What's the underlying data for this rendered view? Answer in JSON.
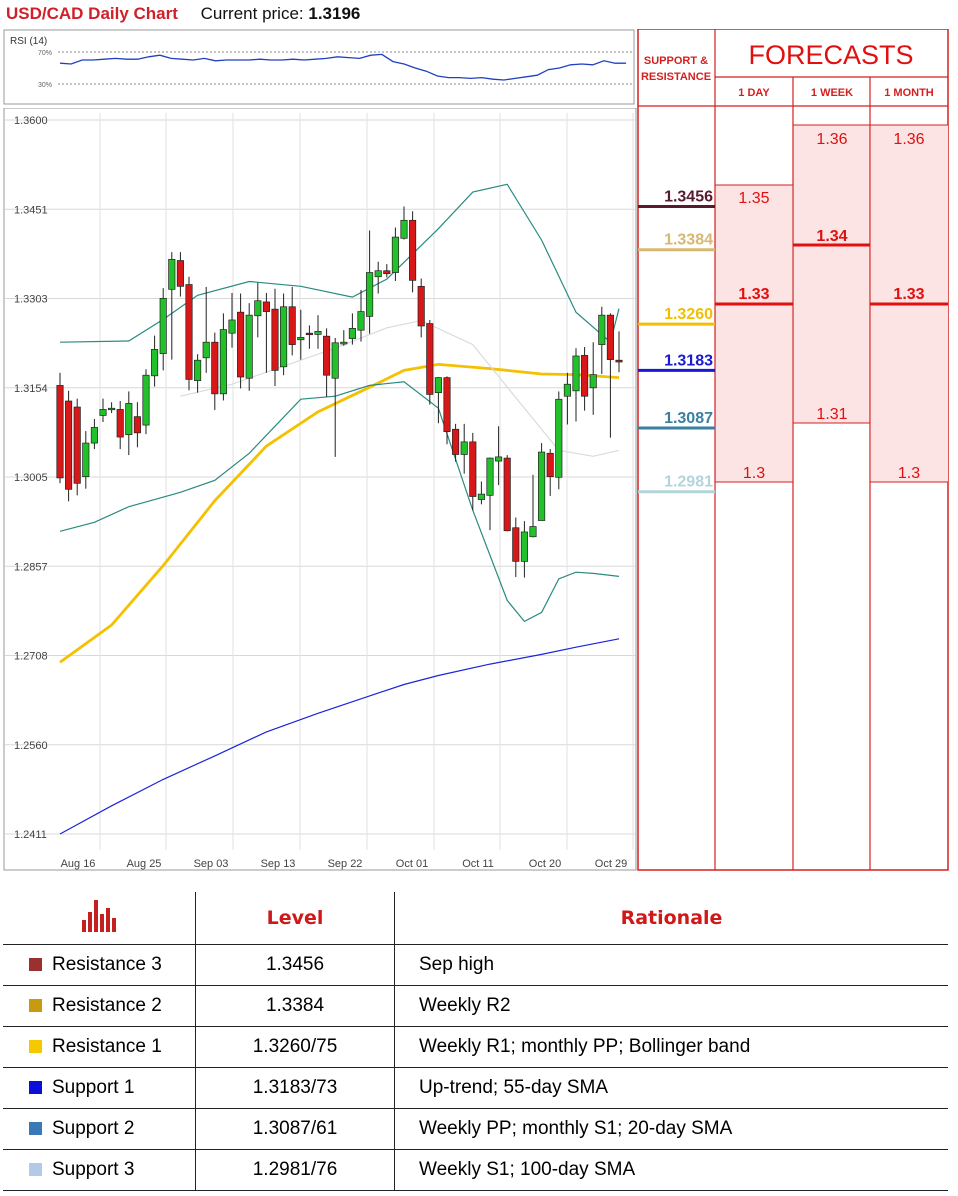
{
  "header": {
    "title": "USD/CAD Daily Chart",
    "price_label": "Current price:",
    "price_value": "1.3196"
  },
  "rsi": {
    "label": "RSI (14)",
    "upper": "70%",
    "lower": "30%",
    "values": [
      56,
      55,
      60,
      60,
      61,
      62,
      61,
      61,
      64,
      66,
      62,
      61,
      60,
      62,
      59,
      60,
      60,
      60,
      61,
      60,
      60,
      61,
      60,
      61,
      62,
      64,
      63,
      62,
      66,
      67,
      58,
      55,
      50,
      46,
      40,
      38,
      38,
      37,
      38,
      36,
      35,
      37,
      39,
      41,
      48,
      50,
      54,
      55,
      54,
      59,
      56,
      56
    ]
  },
  "chart_data": {
    "type": "candlestick",
    "title": "USD/CAD Daily Chart",
    "y_ticks": [
      "1.3600",
      "1.3451",
      "1.3303",
      "1.3154",
      "1.3005",
      "1.2857",
      "1.2708",
      "1.2560",
      "1.2411"
    ],
    "x_ticks": [
      "Aug 16",
      "Aug 25",
      "Sep 03",
      "Sep 13",
      "Sep 22",
      "Oct 01",
      "Oct 11",
      "Oct 20",
      "Oct 29"
    ],
    "ylim": [
      1.2411,
      1.36
    ],
    "grid": true,
    "candles": [
      [
        1.3158,
        1.3004,
        1.3179,
        1.2995
      ],
      [
        1.3132,
        1.2985,
        1.3149,
        1.2965
      ],
      [
        1.3122,
        1.2995,
        1.3136,
        1.2975
      ],
      [
        1.3006,
        1.3062,
        1.3082,
        1.2986
      ],
      [
        1.3062,
        1.3088,
        1.3102,
        1.3052
      ],
      [
        1.3108,
        1.3118,
        1.3136,
        1.3097
      ],
      [
        1.3118,
        1.312,
        1.313,
        1.3112
      ],
      [
        1.3118,
        1.3072,
        1.3132,
        1.3052
      ],
      [
        1.3076,
        1.3128,
        1.3148,
        1.3042
      ],
      [
        1.3106,
        1.3079,
        1.313,
        1.3055
      ],
      [
        1.3092,
        1.3175,
        1.3185,
        1.3077
      ],
      [
        1.3174,
        1.3218,
        1.3241,
        1.3156
      ],
      [
        1.3211,
        1.3303,
        1.332,
        1.3183
      ],
      [
        1.3318,
        1.3368,
        1.338,
        1.3201
      ],
      [
        1.3366,
        1.3323,
        1.338,
        1.3306
      ],
      [
        1.3326,
        1.3168,
        1.3339,
        1.315
      ],
      [
        1.3166,
        1.32,
        1.321,
        1.3146
      ],
      [
        1.3204,
        1.323,
        1.3322,
        1.3179
      ],
      [
        1.323,
        1.3144,
        1.3246,
        1.3117
      ],
      [
        1.3144,
        1.3251,
        1.3278,
        1.3133
      ],
      [
        1.3245,
        1.3267,
        1.3312,
        1.3221
      ],
      [
        1.328,
        1.3172,
        1.3311,
        1.3153
      ],
      [
        1.317,
        1.3275,
        1.3295,
        1.3149
      ],
      [
        1.3274,
        1.3299,
        1.3329,
        1.3238
      ],
      [
        1.3297,
        1.3281,
        1.3312,
        1.3179
      ],
      [
        1.3285,
        1.3183,
        1.3319,
        1.3157
      ],
      [
        1.3189,
        1.3289,
        1.3311,
        1.3175
      ],
      [
        1.3289,
        1.3226,
        1.3322,
        1.3208
      ],
      [
        1.3234,
        1.3238,
        1.3284,
        1.3201
      ],
      [
        1.3245,
        1.3244,
        1.3258,
        1.3219
      ],
      [
        1.3243,
        1.3248,
        1.3275,
        1.3219
      ],
      [
        1.324,
        1.3175,
        1.3253,
        1.3139
      ],
      [
        1.317,
        1.3229,
        1.3237,
        1.3039
      ],
      [
        1.3227,
        1.323,
        1.325,
        1.3224
      ],
      [
        1.3236,
        1.3253,
        1.3278,
        1.3226
      ],
      [
        1.325,
        1.3281,
        1.3317,
        1.3231
      ],
      [
        1.3273,
        1.3346,
        1.3416,
        1.3244
      ],
      [
        1.3339,
        1.3349,
        1.3364,
        1.3311
      ],
      [
        1.3349,
        1.3344,
        1.336,
        1.3338
      ],
      [
        1.3346,
        1.3405,
        1.3421,
        1.3332
      ],
      [
        1.3403,
        1.3433,
        1.3456,
        1.3401
      ],
      [
        1.3433,
        1.3333,
        1.3448,
        1.3313
      ],
      [
        1.3323,
        1.3257,
        1.3336,
        1.3238
      ],
      [
        1.3261,
        1.3143,
        1.3267,
        1.3126
      ],
      [
        1.3146,
        1.3171,
        1.3172,
        1.3095
      ],
      [
        1.3171,
        1.3081,
        1.3173,
        1.306
      ],
      [
        1.3085,
        1.3043,
        1.3094,
        1.3031
      ],
      [
        1.3043,
        1.3064,
        1.3094,
        1.3011
      ],
      [
        1.3064,
        1.2973,
        1.3079,
        1.295
      ],
      [
        1.2968,
        1.2977,
        1.2998,
        1.296
      ],
      [
        1.2975,
        1.3037,
        1.3038,
        1.2917
      ],
      [
        1.3032,
        1.3039,
        1.309,
        1.2992
      ],
      [
        1.3037,
        1.2916,
        1.3042,
        1.2915
      ],
      [
        1.2921,
        1.2865,
        1.2938,
        1.2839
      ],
      [
        1.2865,
        1.2914,
        1.2932,
        1.2838
      ],
      [
        1.2906,
        1.2923,
        1.3009,
        1.2905
      ],
      [
        1.2933,
        1.3047,
        1.3062,
        1.294
      ],
      [
        1.3045,
        1.3006,
        1.3052,
        1.2974
      ],
      [
        1.3005,
        1.3135,
        1.3148,
        1.2985
      ],
      [
        1.314,
        1.316,
        1.3179,
        1.3093
      ],
      [
        1.3149,
        1.3207,
        1.322,
        1.3098
      ],
      [
        1.3208,
        1.314,
        1.3222,
        1.3116
      ],
      [
        1.3154,
        1.3176,
        1.323,
        1.3109
      ],
      [
        1.3226,
        1.3275,
        1.3289,
        1.3177
      ],
      [
        1.3275,
        1.3201,
        1.3278,
        1.3071
      ],
      [
        1.32,
        1.3197,
        1.3248,
        1.318
      ]
    ],
    "indicator_lines": [
      {
        "name": "55-day SMA",
        "color": "#f5c000",
        "values": [
          [
            0,
            1.2697
          ],
          [
            6,
            1.2759
          ],
          [
            12,
            1.2858
          ],
          [
            18,
            1.2966
          ],
          [
            24,
            1.3057
          ],
          [
            30,
            1.3114
          ],
          [
            36,
            1.3155
          ],
          [
            40,
            1.3183
          ],
          [
            44,
            1.3193
          ],
          [
            50,
            1.3186
          ],
          [
            56,
            1.3177
          ],
          [
            60,
            1.3176
          ],
          [
            65,
            1.3171
          ]
        ]
      },
      {
        "name": "200-day SMA",
        "color": "#1c25d8",
        "values": [
          [
            0,
            1.2411
          ],
          [
            6,
            1.2458
          ],
          [
            12,
            1.2502
          ],
          [
            18,
            1.2541
          ],
          [
            24,
            1.2581
          ],
          [
            30,
            1.2612
          ],
          [
            36,
            1.2641
          ],
          [
            40,
            1.266
          ],
          [
            44,
            1.2675
          ],
          [
            50,
            1.2694
          ],
          [
            56,
            1.271
          ],
          [
            60,
            1.2722
          ],
          [
            65,
            1.2736
          ]
        ]
      },
      {
        "name": "Bollinger upper",
        "color": "#2a8a80",
        "values": [
          [
            0,
            1.323
          ],
          [
            8,
            1.3232
          ],
          [
            12,
            1.3268
          ],
          [
            16,
            1.3308
          ],
          [
            22,
            1.3331
          ],
          [
            28,
            1.3323
          ],
          [
            34,
            1.3305
          ],
          [
            38,
            1.3335
          ],
          [
            44,
            1.3419
          ],
          [
            48,
            1.348
          ],
          [
            52,
            1.3493
          ],
          [
            56,
            1.34
          ],
          [
            60,
            1.328
          ],
          [
            64,
            1.323
          ],
          [
            65,
            1.3286
          ]
        ]
      },
      {
        "name": "Bollinger lower",
        "color": "#2a8a80",
        "values": [
          [
            0,
            1.2915
          ],
          [
            4,
            1.293
          ],
          [
            8,
            1.2956
          ],
          [
            10,
            1.2964
          ],
          [
            14,
            1.298
          ],
          [
            18,
            1.3
          ],
          [
            22,
            1.3045
          ],
          [
            28,
            1.3135
          ],
          [
            32,
            1.314
          ],
          [
            36,
            1.3158
          ],
          [
            40,
            1.3164
          ],
          [
            44,
            1.312
          ],
          [
            48,
            1.295
          ],
          [
            52,
            1.28
          ],
          [
            54,
            1.2765
          ],
          [
            56,
            1.278
          ],
          [
            58,
            1.2836
          ],
          [
            60,
            1.2847
          ],
          [
            62,
            1.2845
          ],
          [
            65,
            1.284
          ]
        ]
      },
      {
        "name": "20-day SMA",
        "color": "#d8dcdc",
        "values": [
          [
            14,
            1.314
          ],
          [
            20,
            1.316
          ],
          [
            26,
            1.319
          ],
          [
            32,
            1.322
          ],
          [
            38,
            1.3254
          ],
          [
            42,
            1.3266
          ],
          [
            48,
            1.3226
          ],
          [
            54,
            1.312
          ],
          [
            58,
            1.305
          ],
          [
            62,
            1.304
          ],
          [
            65,
            1.305
          ]
        ]
      }
    ]
  },
  "sr_levels": [
    {
      "value": "1.3456",
      "color": "#5a1a2e"
    },
    {
      "value": "1.3384",
      "color": "#d8b870"
    },
    {
      "value": "1.3260",
      "color": "#f0c000"
    },
    {
      "value": "1.3183",
      "color": "#1a1ad0"
    },
    {
      "value": "1.3087",
      "color": "#3a7fa0"
    },
    {
      "value": "1.2981",
      "color": "#b4d4dc"
    }
  ],
  "forecasts": {
    "sr_header_1": "SUPPORT &",
    "sr_header_2": "RESISTANCE",
    "title": "FORECASTS",
    "day": {
      "label": "1 DAY",
      "high": "1.35",
      "mid": "1.33",
      "low": "1.3"
    },
    "week": {
      "label": "1 WEEK",
      "high": "1.36",
      "mid": "1.34",
      "low": "1.31"
    },
    "month": {
      "label": "1 MONTH",
      "high": "1.36",
      "mid": "1.33",
      "low": "1.3"
    }
  },
  "table": {
    "level_header": "Level",
    "rationale_header": "Rationale",
    "rows": [
      {
        "name": "Resistance 3",
        "level": "1.3456",
        "rationale": "Sep high",
        "color": "#9a3030"
      },
      {
        "name": "Resistance 2",
        "level": "1.3384",
        "rationale": "Weekly R2",
        "color": "#c89a10"
      },
      {
        "name": "Resistance 1",
        "level": "1.3260/75",
        "rationale": "Weekly R1; monthly PP; Bollinger band",
        "color": "#f5c800"
      },
      {
        "name": "Support 1",
        "level": "1.3183/73",
        "rationale": "Up-trend; 55-day SMA",
        "color": "#0a10d8"
      },
      {
        "name": "Support 2",
        "level": "1.3087/61",
        "rationale": "Weekly PP; monthly S1; 20-day SMA",
        "color": "#3a78b8"
      },
      {
        "name": "Support 3",
        "level": "1.2981/76",
        "rationale": "Weekly S1; 100-day SMA",
        "color": "#b4c8e8"
      }
    ]
  }
}
